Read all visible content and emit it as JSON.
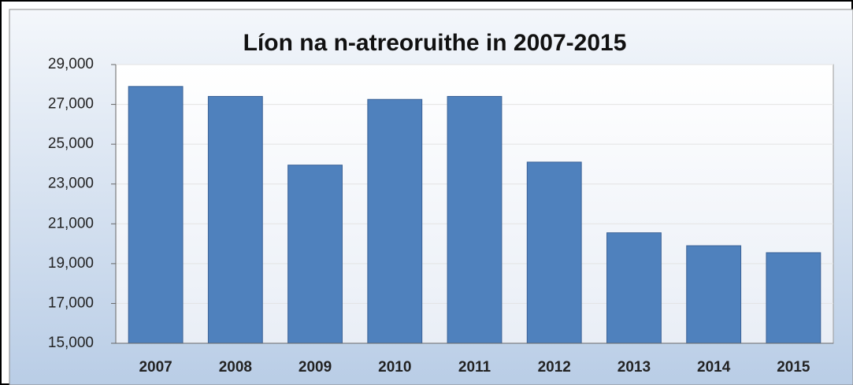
{
  "chart_data": {
    "type": "bar",
    "title": "Líon na n-atreoruithe in 2007-2015",
    "categories": [
      "2007",
      "2008",
      "2009",
      "2010",
      "2011",
      "2012",
      "2013",
      "2014",
      "2015"
    ],
    "values": [
      27900,
      27400,
      23950,
      27250,
      27400,
      24100,
      20550,
      19900,
      19550
    ],
    "color": "#4f81bd",
    "ylim": [
      15000,
      29000
    ],
    "yticks": [
      {
        "value": 15000,
        "label": "15,000"
      },
      {
        "value": 17000,
        "label": "17,000"
      },
      {
        "value": 19000,
        "label": "19,000"
      },
      {
        "value": 21000,
        "label": "21,000"
      },
      {
        "value": 23000,
        "label": "23,000"
      },
      {
        "value": 25000,
        "label": "25,000"
      },
      {
        "value": 27000,
        "label": "27,000"
      },
      {
        "value": 29000,
        "label": "29,000"
      }
    ],
    "grid": true
  }
}
